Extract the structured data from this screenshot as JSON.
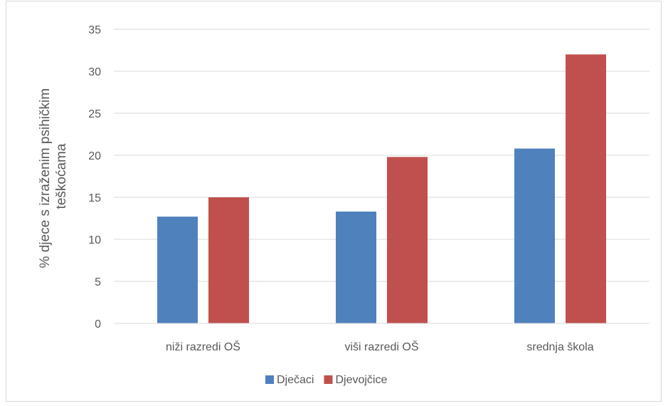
{
  "chart_data": {
    "type": "bar",
    "title": "",
    "xlabel": "",
    "ylabel_lines": [
      "% djece s izraženim psihičkim",
      "teškoćama"
    ],
    "ylim": [
      0,
      35
    ],
    "yticks": [
      0,
      5,
      10,
      15,
      20,
      25,
      30,
      35
    ],
    "grid": true,
    "legend": "bottom",
    "categories": [
      "niži razredi OŠ",
      "viši razredi OŠ",
      "srednja škola"
    ],
    "series": [
      {
        "name": "Dječaci",
        "color": "#4f81bd",
        "values": [
          12.7,
          13.3,
          20.8
        ]
      },
      {
        "name": "Djevojčice",
        "color": "#c0504d",
        "values": [
          15.0,
          19.8,
          32.0
        ]
      }
    ]
  }
}
